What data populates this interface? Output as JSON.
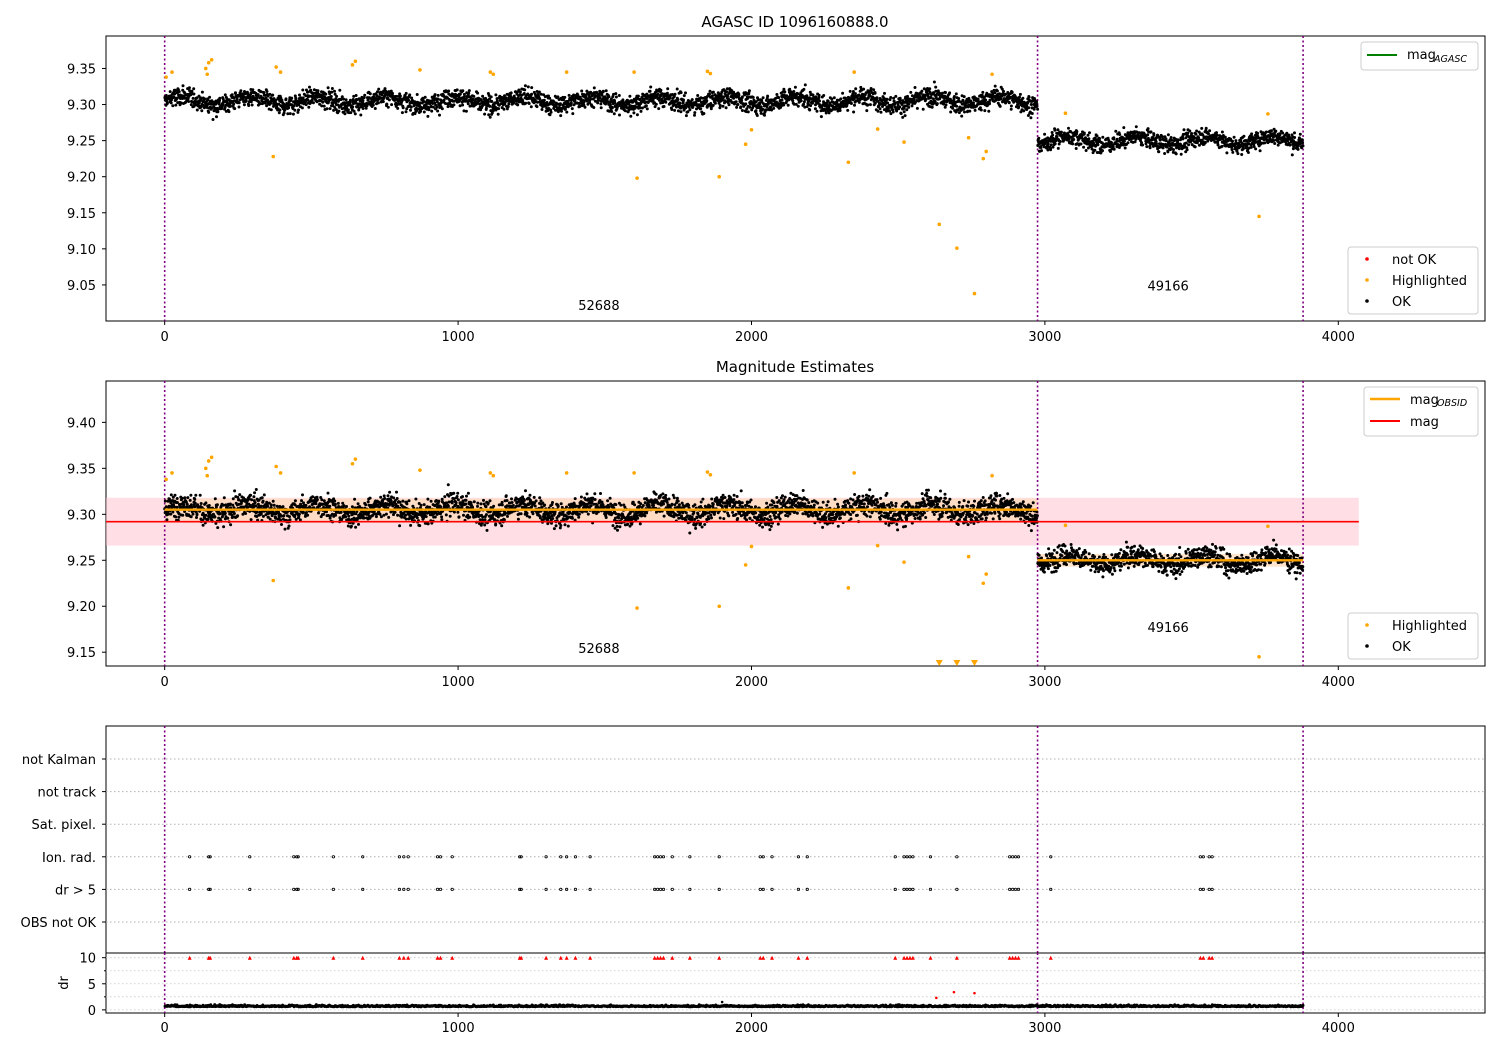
{
  "figure": {
    "title": "AGASC ID 1096160888.0",
    "colors": {
      "ok": "#000000",
      "highlighted": "#ffa500",
      "not_ok": "#ff0000",
      "mag": "#ff0000",
      "mag_obsid": "#ffa500",
      "mag_agasc": "#008000",
      "observation_divider": "#800080",
      "mag_band": "#ffc0cb",
      "obsid_band": "#ffdab9"
    }
  },
  "chart_data": [
    {
      "type": "scatter",
      "panel": "top",
      "title": "AGASC ID 1096160888.0",
      "xlim": [
        -200,
        4500
      ],
      "ylim": [
        9.0,
        9.395
      ],
      "xticks": [
        0,
        1000,
        2000,
        3000,
        4000
      ],
      "yticks": [
        "9.05",
        "9.10",
        "9.15",
        "9.20",
        "9.25",
        "9.30",
        "9.35"
      ],
      "divider_x": [
        0,
        2975,
        3880
      ],
      "segment_labels": [
        {
          "text": "52688",
          "x": 1480,
          "y": 9.015
        },
        {
          "text": "49166",
          "x": 3420,
          "y": 9.042
        }
      ],
      "legend_upper": {
        "position": "upper right",
        "entries": [
          "mag",
          "AGASC"
        ]
      },
      "legend_lower": {
        "position": "lower right",
        "entries": [
          "not OK",
          "Highlighted",
          "OK"
        ]
      },
      "series": [
        {
          "name": "OK",
          "segments": [
            {
              "x0": 0,
              "x1": 2975,
              "mean": 9.305,
              "sd": 0.011
            },
            {
              "x0": 2975,
              "x1": 3880,
              "mean": 9.25,
              "sd": 0.01
            }
          ],
          "n_points": 3880
        },
        {
          "name": "Highlighted",
          "points": [
            [
              5,
              9.338
            ],
            [
              25,
              9.345
            ],
            [
              140,
              9.35
            ],
            [
              150,
              9.358
            ],
            [
              160,
              9.362
            ],
            [
              145,
              9.342
            ],
            [
              370,
              9.228
            ],
            [
              380,
              9.352
            ],
            [
              395,
              9.345
            ],
            [
              640,
              9.355
            ],
            [
              650,
              9.36
            ],
            [
              870,
              9.348
            ],
            [
              1110,
              9.345
            ],
            [
              1120,
              9.342
            ],
            [
              1370,
              9.345
            ],
            [
              1600,
              9.345
            ],
            [
              1610,
              9.198
            ],
            [
              1850,
              9.346
            ],
            [
              1860,
              9.343
            ],
            [
              1890,
              9.2
            ],
            [
              1980,
              9.245
            ],
            [
              2000,
              9.265
            ],
            [
              2330,
              9.22
            ],
            [
              2350,
              9.345
            ],
            [
              2430,
              9.266
            ],
            [
              2520,
              9.248
            ],
            [
              2640,
              9.134
            ],
            [
              2700,
              9.101
            ],
            [
              2740,
              9.254
            ],
            [
              2760,
              9.038
            ],
            [
              2790,
              9.225
            ],
            [
              2800,
              9.235
            ],
            [
              2820,
              9.342
            ],
            [
              3070,
              9.288
            ],
            [
              3730,
              9.145
            ],
            [
              3760,
              9.287
            ]
          ]
        },
        {
          "name": "not OK",
          "points": []
        }
      ]
    },
    {
      "type": "scatter",
      "panel": "middle",
      "title": "Magnitude Estimates",
      "xlim": [
        -200,
        4500
      ],
      "ylim": [
        9.135,
        9.445
      ],
      "xticks": [
        0,
        1000,
        2000,
        3000,
        4000
      ],
      "yticks": [
        "9.15",
        "9.20",
        "9.25",
        "9.30",
        "9.35",
        "9.40"
      ],
      "divider_x": [
        0,
        2975,
        3880
      ],
      "segment_labels": [
        {
          "text": "52688",
          "x": 1480,
          "y": 9.149
        },
        {
          "text": "49166",
          "x": 3420,
          "y": 9.172
        }
      ],
      "mag": 9.292,
      "mag_band": [
        9.266,
        9.318
      ],
      "mag_obsid": [
        {
          "x0": 0,
          "x1": 2975,
          "value": 9.305,
          "band": [
            9.293,
            9.317
          ]
        },
        {
          "x0": 2975,
          "x1": 3880,
          "value": 9.25,
          "band": [
            9.243,
            9.257
          ]
        }
      ],
      "legend_upper": {
        "position": "upper right",
        "entries": [
          "mag",
          "OBSID",
          "mag"
        ]
      },
      "legend_lower": {
        "position": "lower right",
        "entries": [
          "Highlighted",
          "OK"
        ]
      }
    },
    {
      "type": "scatter",
      "panel": "flags",
      "xlim": [
        -200,
        4500
      ],
      "categories": [
        "not Kalman",
        "not track",
        "Sat. pixel.",
        "Ion. rad.",
        "dr > 5",
        "OBS not OK"
      ],
      "flag_x": [
        85,
        150,
        155,
        290,
        440,
        450,
        455,
        575,
        675,
        800,
        815,
        830,
        930,
        940,
        980,
        1210,
        1215,
        1300,
        1350,
        1370,
        1400,
        1450,
        1670,
        1680,
        1690,
        1700,
        1730,
        1790,
        1890,
        2030,
        2040,
        2070,
        2160,
        2190,
        2490,
        2520,
        2530,
        2540,
        2550,
        2610,
        2700,
        2880,
        2890,
        2900,
        2910,
        3020,
        3530,
        3540,
        3560,
        3570
      ]
    },
    {
      "type": "scatter",
      "panel": "dr",
      "xlim": [
        -200,
        4500
      ],
      "ylim": [
        -0.6,
        10.9
      ],
      "ylabel": "dr",
      "yticks": [
        "0",
        "5",
        "10"
      ],
      "clipped_value": 10,
      "outliers": [
        [
          1900,
          1.5
        ],
        [
          2630,
          2.3
        ],
        [
          2690,
          3.4
        ],
        [
          2760,
          3.2
        ]
      ]
    }
  ]
}
